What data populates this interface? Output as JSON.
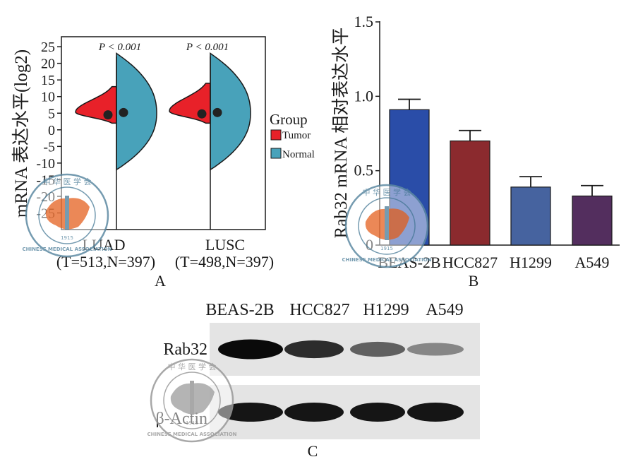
{
  "panels": {
    "A": {
      "label": "A",
      "p_labels": [
        "P < 0.001",
        "P < 0.001"
      ]
    },
    "B": {
      "label": "B"
    },
    "C": {
      "label": "C",
      "lanes": [
        "BEAS-2B",
        "HCC827",
        "H1299",
        "A549"
      ],
      "rows": [
        {
          "name": "Rab32",
          "intensities": [
            1.0,
            0.85,
            0.62,
            0.45
          ]
        },
        {
          "name": "β-Actin",
          "intensities": [
            0.95,
            0.95,
            0.95,
            0.95
          ]
        }
      ]
    }
  },
  "watermark": {
    "top_text": "中 华 医 学 会",
    "ring_text": "CHINESE MEDICAL ASSOCIATION",
    "year": "1915",
    "color": "#5d8aa3",
    "map_color": "#e8743a"
  },
  "chart_data": [
    {
      "type": "violin",
      "ylabel": "mRNA 表达水平(log2)",
      "ylim": [
        -30,
        28
      ],
      "yticks": [
        25,
        20,
        15,
        10,
        5,
        0,
        -5,
        -10,
        -15,
        -20,
        -25
      ],
      "categories": [
        "LUAD",
        "LUSC"
      ],
      "category_sublabels": [
        "(T=513,N=397)",
        "(T=498,N=397)"
      ],
      "legend_title": "Group",
      "legend_position": "right",
      "series": [
        {
          "name": "Tumor",
          "color": "#e82129",
          "range": [
            [
              2,
              13
            ],
            [
              2,
              14
            ]
          ],
          "mean": [
            4.5,
            4.8
          ]
        },
        {
          "name": "Normal",
          "color": "#48a2ba",
          "range": [
            [
              -12,
              23
            ],
            [
              -12,
              23
            ]
          ],
          "mean": [
            5.2,
            5.2
          ]
        }
      ],
      "annotations": [
        "P < 0.001",
        "P < 0.001"
      ],
      "grid": false
    },
    {
      "type": "bar",
      "ylabel": "Rab32 mRNA 相对表达水平",
      "ylim": [
        0,
        1.5
      ],
      "yticks": [
        "0",
        "0.5",
        "1.0",
        "1.5"
      ],
      "categories": [
        "BEAS-2B",
        "HCC827",
        "H1299",
        "A549"
      ],
      "values": [
        0.91,
        0.7,
        0.39,
        0.33
      ],
      "errors": [
        0.07,
        0.07,
        0.07,
        0.07
      ],
      "colors": [
        "#2a4da8",
        "#8b2a2e",
        "#46639f",
        "#532e5e"
      ],
      "grid": false
    }
  ]
}
